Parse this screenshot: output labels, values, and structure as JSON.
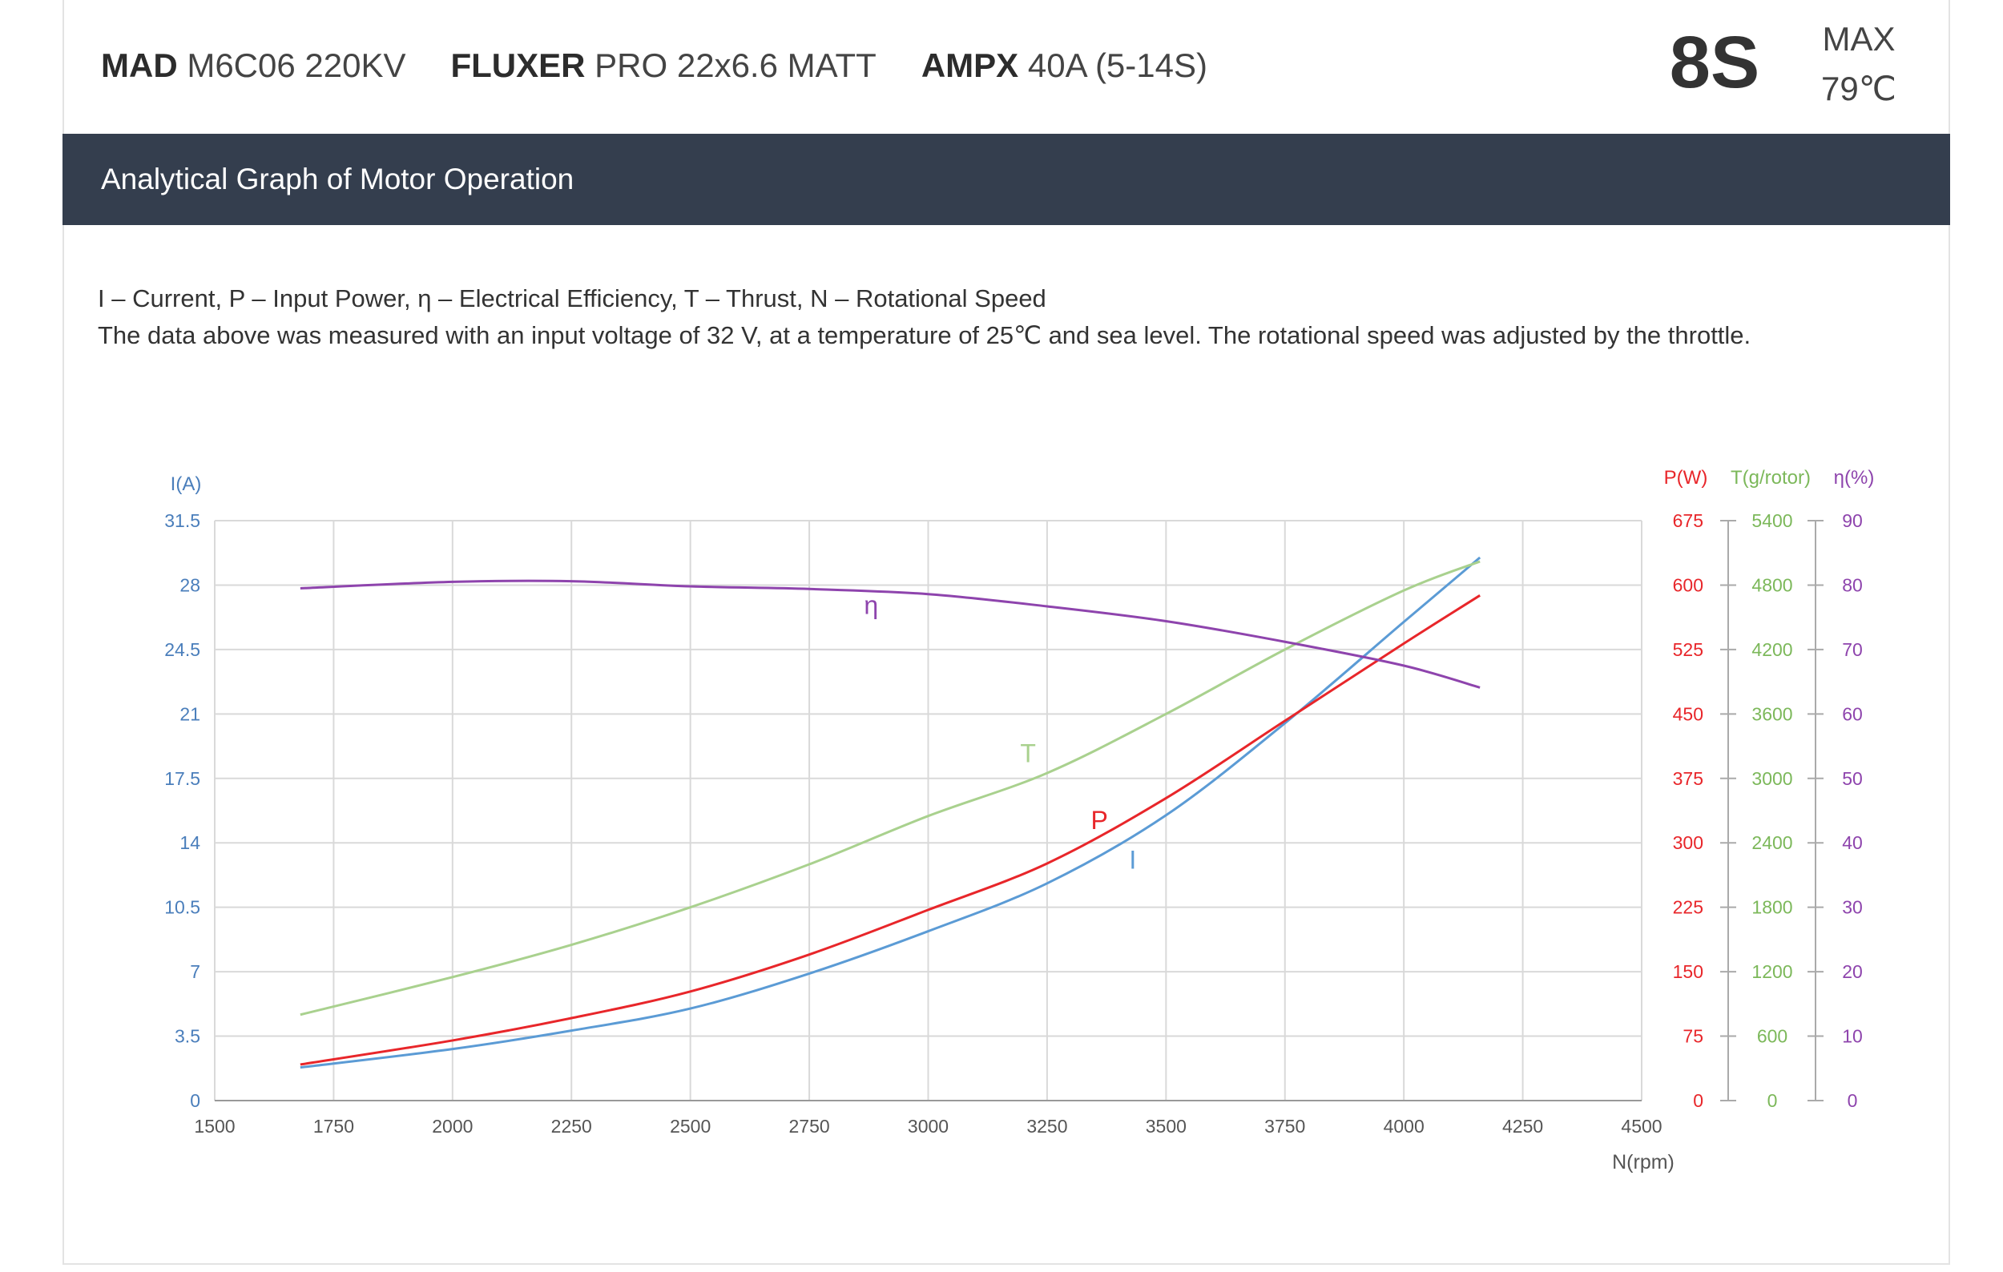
{
  "header": {
    "specs": [
      {
        "brand": "MAD",
        "model": "M6C06 220KV"
      },
      {
        "brand": "FLUXER",
        "model": "PRO 22x6.6 MATT"
      },
      {
        "brand": "AMPX",
        "model": "40A (5-14S)"
      }
    ],
    "cells": "8S",
    "max_label": "MAX",
    "max_temp": "79℃"
  },
  "banner": {
    "title": "Analytical Graph of Motor Operation"
  },
  "notes": {
    "legend_line": "I – Current, P – Input Power, η – Electrical Efficiency, T – Thrust,   N – Rotational Speed",
    "conditions_line": "The data above was measured with an input voltage of 32 V, at a temperature of 25℃ and sea level. The rotational speed was adjusted by the throttle."
  },
  "colors": {
    "current": "#5b9bd5",
    "power": "#e8262a",
    "thrust": "#a9d18e",
    "efficiency": "#8e44ad",
    "left_axis": "#4a7ebb",
    "grid": "#d9d9d9",
    "banner": "#343e4e"
  },
  "chart_data": {
    "type": "line",
    "xlabel": "N(rpm)",
    "xlim": [
      1500,
      4500
    ],
    "x_ticks": [
      "1500",
      "1750",
      "2000",
      "2250",
      "2500",
      "2750",
      "3000",
      "3250",
      "3500",
      "3750",
      "4000",
      "4250",
      "4500"
    ],
    "axes": {
      "left": {
        "label": "I(A)",
        "lim": [
          0,
          31.5
        ],
        "ticks": [
          "0",
          "3.5",
          "7",
          "10.5",
          "14",
          "17.5",
          "21",
          "24.5",
          "28",
          "31.5"
        ]
      },
      "power": {
        "label": "P(W)",
        "lim": [
          0,
          675
        ],
        "ticks": [
          "0",
          "75",
          "150",
          "225",
          "300",
          "375",
          "450",
          "525",
          "600",
          "675"
        ]
      },
      "thrust": {
        "label": "T(g/rotor)",
        "lim": [
          0,
          5400
        ],
        "ticks": [
          "0",
          "600",
          "1200",
          "1800",
          "2400",
          "3000",
          "3600",
          "4200",
          "4800",
          "5400"
        ]
      },
      "efficiency": {
        "label": "η(%)",
        "lim": [
          0,
          90
        ],
        "ticks": [
          "0",
          "10",
          "20",
          "30",
          "40",
          "50",
          "60",
          "70",
          "80",
          "90"
        ]
      }
    },
    "series": [
      {
        "name": "I",
        "axis": "left",
        "x": [
          1680,
          2000,
          2250,
          2500,
          2750,
          3000,
          3250,
          3500,
          3750,
          4000,
          4160
        ],
        "values": [
          1.8,
          2.8,
          3.8,
          5.0,
          6.9,
          9.2,
          11.8,
          15.5,
          20.5,
          26.0,
          29.5
        ]
      },
      {
        "name": "P",
        "axis": "power",
        "x": [
          1680,
          2000,
          2250,
          2500,
          2750,
          3000,
          3250,
          3500,
          3750,
          4000,
          4160
        ],
        "values": [
          42,
          70,
          96,
          127,
          170,
          222,
          276,
          352,
          442,
          532,
          588
        ]
      },
      {
        "name": "T",
        "axis": "thrust",
        "x": [
          1680,
          2000,
          2250,
          2500,
          2750,
          3000,
          3250,
          3500,
          3750,
          4000,
          4160
        ],
        "values": [
          800,
          1150,
          1450,
          1800,
          2200,
          2650,
          3050,
          3600,
          4200,
          4750,
          5020
        ]
      },
      {
        "name": "η",
        "axis": "efficiency",
        "x": [
          1680,
          2000,
          2250,
          2500,
          2750,
          3000,
          3250,
          3500,
          3750,
          4000,
          4160
        ],
        "values": [
          79.5,
          80.5,
          80.6,
          79.8,
          79.4,
          78.6,
          76.7,
          74.4,
          71.2,
          67.5,
          64.1
        ]
      }
    ],
    "labels": [
      {
        "text": "η",
        "series": 3,
        "x": 2880,
        "v": 75.5
      },
      {
        "text": "T",
        "series": 2,
        "x": 3210,
        "v": 3150
      },
      {
        "text": "P",
        "series": 1,
        "x": 3360,
        "v": 316
      },
      {
        "text": "I",
        "series": 0,
        "x": 3430,
        "v": 12.6
      }
    ],
    "grid": true
  }
}
